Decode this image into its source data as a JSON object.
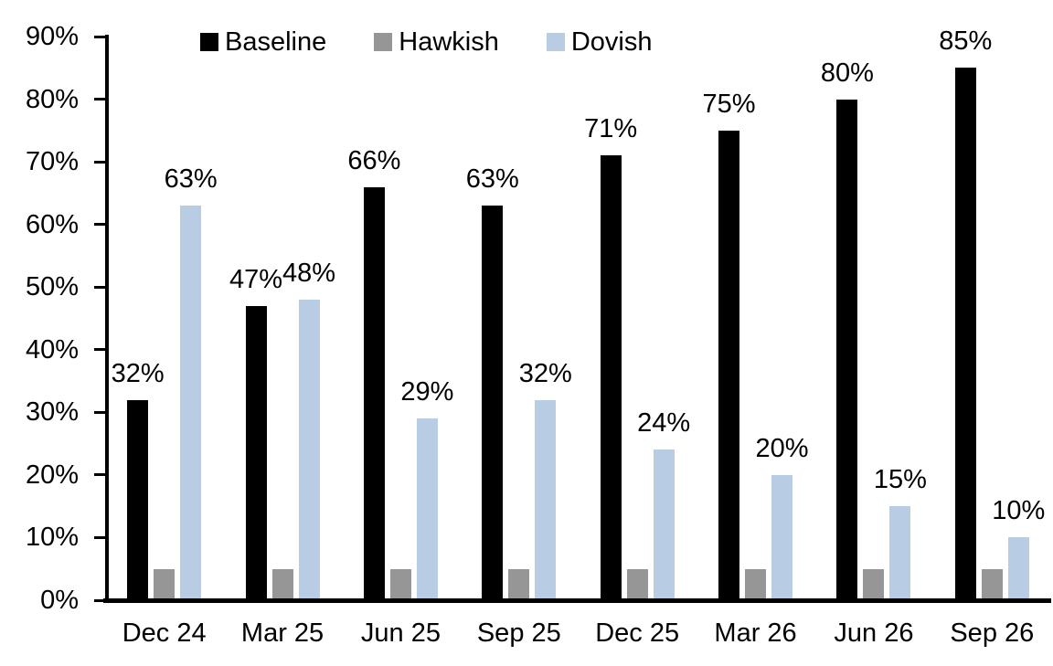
{
  "chart_data": {
    "type": "bar",
    "title": "",
    "xlabel": "",
    "ylabel": "",
    "categories": [
      "Dec 24",
      "Mar 25",
      "Jun 25",
      "Sep 25",
      "Dec 25",
      "Mar 26",
      "Jun 26",
      "Sep 26"
    ],
    "series": [
      {
        "name": "Baseline",
        "color": "#000000",
        "values": [
          32,
          47,
          66,
          63,
          71,
          75,
          80,
          85
        ],
        "labels": [
          "32%",
          "47%",
          "66%",
          "63%",
          "71%",
          "75%",
          "80%",
          "85%"
        ]
      },
      {
        "name": "Hawkish",
        "color": "#969696",
        "values": [
          5,
          5,
          5,
          5,
          5,
          5,
          5,
          5
        ],
        "labels": null
      },
      {
        "name": "Dovish",
        "color": "#b8cce4",
        "values": [
          63,
          48,
          29,
          32,
          24,
          20,
          15,
          10
        ],
        "labels": [
          "63%",
          "48%",
          "29%",
          "32%",
          "24%",
          "20%",
          "15%",
          "10%"
        ]
      }
    ],
    "yticks": [
      "0%",
      "10%",
      "20%",
      "30%",
      "40%",
      "50%",
      "60%",
      "70%",
      "80%",
      "90%"
    ],
    "ylim": [
      0,
      90
    ],
    "grid": false,
    "legend_position": "top"
  }
}
